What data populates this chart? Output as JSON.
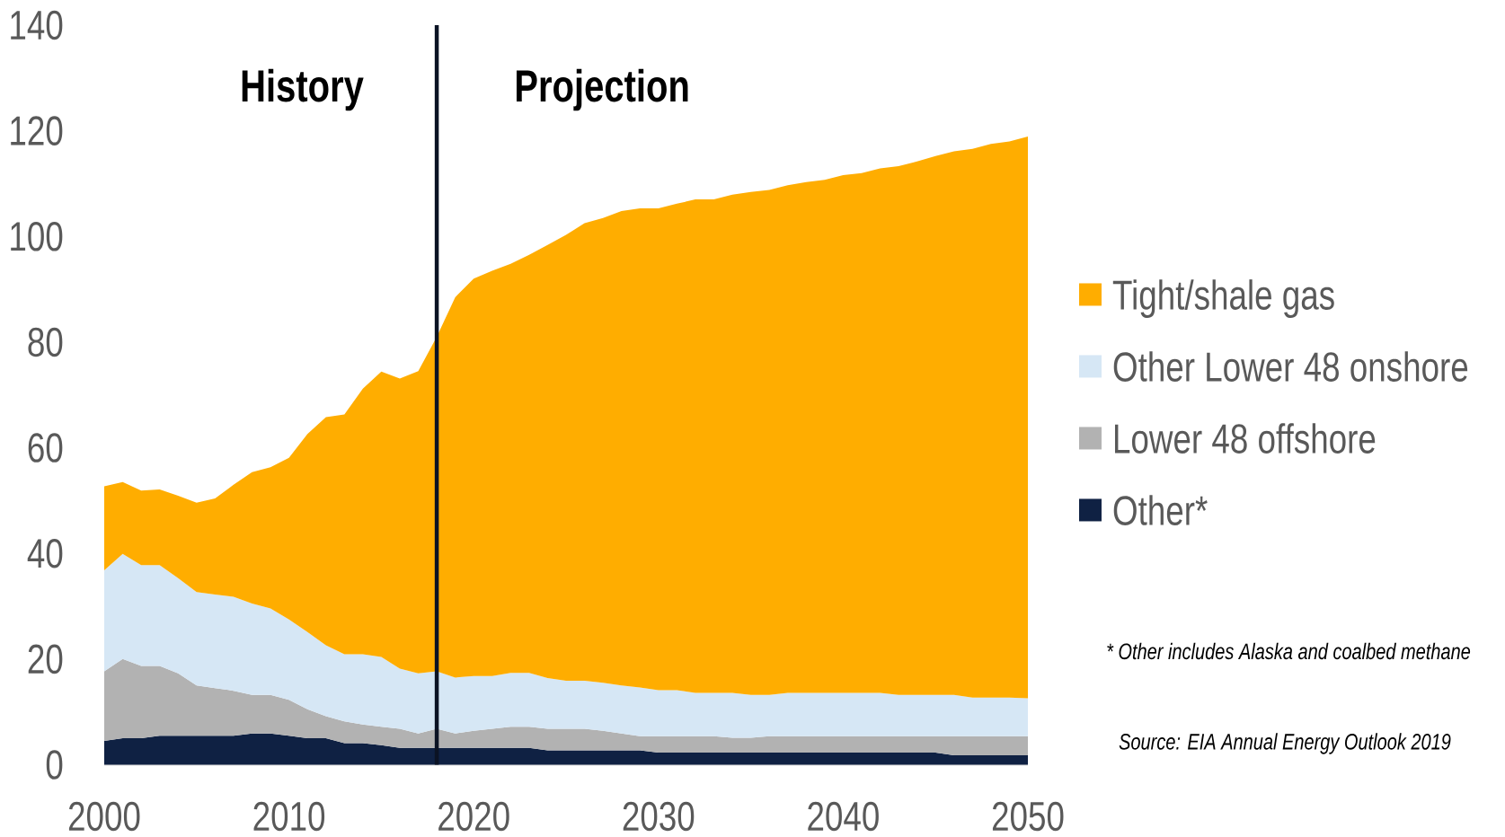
{
  "chart_data": {
    "type": "area",
    "stacked": true,
    "x": [
      2000,
      2001,
      2002,
      2003,
      2004,
      2005,
      2006,
      2007,
      2008,
      2009,
      2010,
      2011,
      2012,
      2013,
      2014,
      2015,
      2016,
      2017,
      2018,
      2019,
      2020,
      2021,
      2022,
      2023,
      2024,
      2025,
      2026,
      2027,
      2028,
      2029,
      2030,
      2031,
      2032,
      2033,
      2034,
      2035,
      2036,
      2037,
      2038,
      2039,
      2040,
      2041,
      2042,
      2043,
      2044,
      2045,
      2046,
      2047,
      2048,
      2049,
      2050
    ],
    "series": [
      {
        "name": "Other*",
        "color": "#0f2143",
        "values": [
          4.5,
          5.0,
          5.0,
          5.5,
          5.5,
          5.5,
          5.5,
          5.5,
          5.9,
          5.9,
          5.5,
          5.0,
          5.0,
          4.1,
          4.1,
          3.7,
          3.2,
          3.2,
          3.2,
          3.2,
          3.2,
          3.2,
          3.2,
          3.2,
          2.7,
          2.7,
          2.7,
          2.7,
          2.7,
          2.7,
          2.3,
          2.3,
          2.3,
          2.3,
          2.3,
          2.3,
          2.3,
          2.3,
          2.3,
          2.3,
          2.3,
          2.3,
          2.3,
          2.3,
          2.3,
          2.3,
          1.8,
          1.8,
          1.8,
          1.8,
          1.8
        ]
      },
      {
        "name": "Lower 48 offshore",
        "color": "#b2b2b2",
        "values": [
          13.2,
          15.0,
          13.7,
          13.2,
          11.8,
          9.5,
          9.0,
          8.5,
          7.3,
          7.3,
          6.8,
          5.5,
          4.2,
          4.1,
          3.5,
          3.5,
          3.6,
          2.7,
          3.6,
          2.7,
          3.2,
          3.6,
          4.0,
          4.0,
          4.1,
          4.1,
          4.1,
          3.7,
          3.2,
          2.7,
          3.1,
          3.1,
          3.1,
          3.1,
          2.8,
          2.8,
          3.1,
          3.1,
          3.1,
          3.1,
          3.1,
          3.1,
          3.1,
          3.1,
          3.1,
          3.1,
          3.6,
          3.6,
          3.6,
          3.6,
          3.6
        ]
      },
      {
        "name": "Other Lower 48 onshore",
        "color": "#d6e7f5",
        "values": [
          19.1,
          19.9,
          19.1,
          19.1,
          18.0,
          17.7,
          17.7,
          17.8,
          17.3,
          16.4,
          15.2,
          14.6,
          13.4,
          12.7,
          13.3,
          13.2,
          11.4,
          11.4,
          10.9,
          10.6,
          10.4,
          10.0,
          10.2,
          10.2,
          9.6,
          9.1,
          9.1,
          9.1,
          9.1,
          9.2,
          8.7,
          8.7,
          8.2,
          8.2,
          8.5,
          8.1,
          7.8,
          8.2,
          8.2,
          8.2,
          8.2,
          8.2,
          8.2,
          7.8,
          7.8,
          7.8,
          7.8,
          7.3,
          7.3,
          7.3,
          7.2
        ]
      },
      {
        "name": "Tight/shale gas",
        "color": "#ffad00",
        "values": [
          15.9,
          13.6,
          14.1,
          14.3,
          15.6,
          16.9,
          18.2,
          21.2,
          24.9,
          26.7,
          30.6,
          37.5,
          43.2,
          45.4,
          50.3,
          54.0,
          54.9,
          57.2,
          63.3,
          72.0,
          75.2,
          76.7,
          77.4,
          79.1,
          82.0,
          84.4,
          86.6,
          88.0,
          89.8,
          90.7,
          91.2,
          92.1,
          93.4,
          93.4,
          94.3,
          95.2,
          95.6,
          96.1,
          96.7,
          97.1,
          98.0,
          98.4,
          99.3,
          100.1,
          101.0,
          102.0,
          102.9,
          103.9,
          104.8,
          105.3,
          106.3
        ]
      }
    ],
    "xlim": [
      2000,
      2050
    ],
    "xticks": [
      2000,
      2010,
      2020,
      2030,
      2040,
      2050
    ],
    "ylim": [
      0,
      140
    ],
    "yticks": [
      0,
      20,
      40,
      60,
      80,
      100,
      120,
      140
    ],
    "legend": "right",
    "ref_lines": [
      {
        "axis": "x",
        "value": 2018,
        "color": "#0b1324"
      }
    ],
    "annotations": [
      "History",
      "Projection",
      "* Other includes Alaska and coalbed methane",
      "Source: EIA Annual Energy Outlook 2019"
    ]
  }
}
